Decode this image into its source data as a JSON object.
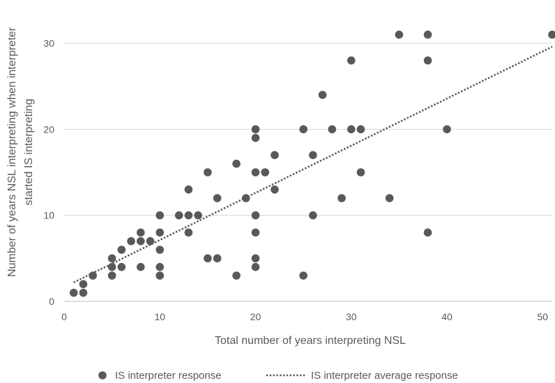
{
  "chart_data": {
    "type": "scatter",
    "xlabel": "Total number of years interpreting NSL",
    "ylabel_lines": [
      "Number of years NSL interpreting when interpreter",
      "started IS interpreting"
    ],
    "xlim": [
      0,
      51
    ],
    "ylim": [
      0,
      33
    ],
    "x_ticks": [
      0,
      10,
      20,
      30,
      40,
      50
    ],
    "y_ticks": [
      0,
      10,
      20,
      30
    ],
    "grid": "horizontal",
    "legend_position": "bottom",
    "series": [
      {
        "name": "IS interpreter response",
        "kind": "points",
        "color": "#595959",
        "points": [
          [
            1,
            1
          ],
          [
            2,
            1
          ],
          [
            2,
            2
          ],
          [
            3,
            3
          ],
          [
            5,
            3
          ],
          [
            5,
            4
          ],
          [
            5,
            5
          ],
          [
            6,
            4
          ],
          [
            6,
            6
          ],
          [
            7,
            7
          ],
          [
            8,
            4
          ],
          [
            8,
            7
          ],
          [
            8,
            8
          ],
          [
            9,
            7
          ],
          [
            10,
            3
          ],
          [
            10,
            4
          ],
          [
            10,
            6
          ],
          [
            10,
            8
          ],
          [
            10,
            10
          ],
          [
            12,
            10
          ],
          [
            13,
            8
          ],
          [
            13,
            10
          ],
          [
            13,
            13
          ],
          [
            14,
            10
          ],
          [
            15,
            5
          ],
          [
            15,
            15
          ],
          [
            16,
            5
          ],
          [
            16,
            12
          ],
          [
            18,
            3
          ],
          [
            18,
            16
          ],
          [
            19,
            12
          ],
          [
            20,
            4
          ],
          [
            20,
            5
          ],
          [
            20,
            8
          ],
          [
            20,
            10
          ],
          [
            20,
            15
          ],
          [
            20,
            19
          ],
          [
            20,
            20
          ],
          [
            21,
            15
          ],
          [
            22,
            13
          ],
          [
            22,
            17
          ],
          [
            25,
            3
          ],
          [
            25,
            20
          ],
          [
            26,
            10
          ],
          [
            26,
            17
          ],
          [
            27,
            24
          ],
          [
            28,
            20
          ],
          [
            29,
            12
          ],
          [
            30,
            20
          ],
          [
            30,
            28
          ],
          [
            31,
            15
          ],
          [
            31,
            20
          ],
          [
            34,
            12
          ],
          [
            35,
            31
          ],
          [
            38,
            8
          ],
          [
            38,
            28
          ],
          [
            38,
            31
          ],
          [
            40,
            20
          ],
          [
            51,
            31
          ]
        ]
      },
      {
        "name": "IS interpreter average response",
        "kind": "trendline",
        "color": "#595959",
        "from": [
          1,
          2.2
        ],
        "to": [
          51,
          29.6
        ]
      }
    ]
  }
}
